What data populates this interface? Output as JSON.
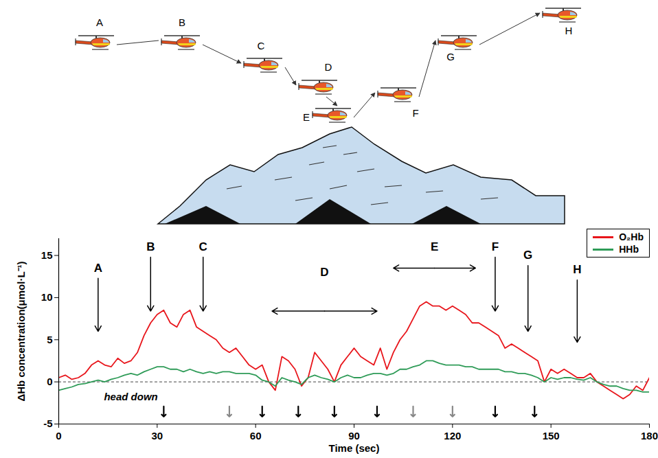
{
  "chart_data": {
    "type": "line",
    "x_label": "Time (sec)",
    "y_label": "ΔHb concentration(μmol·L⁻¹)",
    "x": [
      0,
      2,
      4,
      6,
      8,
      10,
      12,
      14,
      16,
      18,
      20,
      22,
      24,
      26,
      28,
      30,
      32,
      34,
      36,
      38,
      40,
      42,
      44,
      46,
      48,
      50,
      52,
      54,
      56,
      58,
      60,
      62,
      64,
      66,
      68,
      70,
      72,
      74,
      76,
      78,
      80,
      82,
      84,
      86,
      88,
      90,
      92,
      94,
      96,
      98,
      100,
      102,
      104,
      106,
      108,
      110,
      112,
      114,
      116,
      118,
      120,
      122,
      124,
      126,
      128,
      130,
      132,
      134,
      136,
      138,
      140,
      142,
      144,
      146,
      148,
      150,
      152,
      154,
      156,
      158,
      160,
      162,
      164,
      166,
      168,
      170,
      172,
      174,
      176,
      178,
      180
    ],
    "series": [
      {
        "name": "O₂Hb",
        "color": "#e8151b",
        "values": [
          0.5,
          0.8,
          0.3,
          0.5,
          1.0,
          2.0,
          2.5,
          2.0,
          1.8,
          2.8,
          2.2,
          2.5,
          3.5,
          5.5,
          7.0,
          8.0,
          8.5,
          7.0,
          6.5,
          8.0,
          8.5,
          6.5,
          6.0,
          5.5,
          5.0,
          4.0,
          3.5,
          4.0,
          3.0,
          2.0,
          1.5,
          2.0,
          0.0,
          -1.0,
          3.0,
          2.5,
          1.5,
          -0.5,
          0.5,
          3.5,
          2.5,
          1.5,
          0.0,
          2.0,
          3.0,
          4.0,
          3.0,
          2.5,
          2.0,
          4.0,
          1.5,
          3.5,
          5.0,
          6.0,
          7.5,
          9.0,
          9.5,
          9.0,
          9.0,
          8.5,
          9.0,
          8.5,
          8.0,
          7.0,
          7.0,
          6.5,
          6.0,
          5.5,
          4.0,
          4.5,
          4.0,
          3.5,
          3.0,
          2.5,
          0.0,
          1.5,
          1.0,
          1.5,
          1.0,
          0.5,
          0.5,
          1.0,
          0.0,
          -0.5,
          -1.0,
          -1.5,
          -2.0,
          -1.5,
          -0.5,
          -1.0,
          0.5
        ]
      },
      {
        "name": "HHb",
        "color": "#2e9b57",
        "values": [
          -1.0,
          -0.8,
          -0.6,
          -0.3,
          -0.2,
          0.0,
          0.2,
          0.0,
          0.3,
          0.5,
          0.8,
          1.0,
          0.8,
          1.2,
          1.5,
          1.8,
          1.8,
          1.5,
          1.5,
          1.2,
          1.5,
          1.2,
          1.0,
          1.2,
          1.0,
          1.2,
          1.2,
          1.0,
          1.0,
          1.0,
          0.8,
          0.2,
          0.0,
          -0.5,
          0.5,
          0.2,
          0.0,
          -0.3,
          0.5,
          0.8,
          0.5,
          0.3,
          0.0,
          0.5,
          0.8,
          0.5,
          0.5,
          0.8,
          1.0,
          1.0,
          0.8,
          1.0,
          1.5,
          1.5,
          1.8,
          2.0,
          2.5,
          2.5,
          2.2,
          2.0,
          2.0,
          2.0,
          1.8,
          1.8,
          1.5,
          1.5,
          1.5,
          1.5,
          1.2,
          1.2,
          1.0,
          1.0,
          0.8,
          0.5,
          0.0,
          0.5,
          0.3,
          0.5,
          0.5,
          0.3,
          0.2,
          0.5,
          0.0,
          -0.3,
          -0.5,
          -0.5,
          -0.8,
          -1.0,
          -1.0,
          -1.2,
          -1.2
        ]
      }
    ],
    "xlim": [
      0,
      180
    ],
    "xticks": [
      0,
      30,
      60,
      90,
      120,
      150,
      180
    ],
    "ylim": [
      -5,
      17
    ],
    "yticks": [
      -5,
      0,
      5,
      10,
      15
    ],
    "grid": false,
    "legend": "upper right",
    "zero_line": {
      "y": 0,
      "line_style": "dashed"
    },
    "annotations": [
      {
        "label": "A",
        "x": 12,
        "label_y": 13.5,
        "y_start": 12.3,
        "y_end": 6
      },
      {
        "label": "B",
        "x": 28,
        "label_y": 16,
        "y_start": 14.8,
        "y_end": 8.4
      },
      {
        "label": "C",
        "x": 44,
        "label_y": 16,
        "y_start": 14.8,
        "y_end": 8.4
      },
      {
        "label": "D",
        "x_start": 65,
        "x_end": 97,
        "label_y": 13,
        "y": 8.4
      },
      {
        "label": "E",
        "x_start": 102,
        "x_end": 127,
        "label_y": 16,
        "y": 13.5
      },
      {
        "label": "F",
        "x": 133,
        "label_y": 16,
        "y_start": 14.8,
        "y_end": 8.4
      },
      {
        "label": "G",
        "x": 143,
        "label_y": 15,
        "y_start": 13.8,
        "y_end": 6
      },
      {
        "label": "H",
        "x": 158,
        "label_y": 13.3,
        "y_start": 12.1,
        "y_end": 4.7
      }
    ],
    "head_down": {
      "label": "head down",
      "label_x": 22,
      "label_y": -1.8,
      "y": -2.9,
      "x": [
        32,
        52,
        62,
        73,
        84,
        97,
        108,
        120,
        133,
        145
      ],
      "colors": [
        "#000000",
        "#888888",
        "#000000",
        "#000000",
        "#000000",
        "#000000",
        "#888888",
        "#888888",
        "#000000",
        "#000000"
      ]
    }
  }
}
